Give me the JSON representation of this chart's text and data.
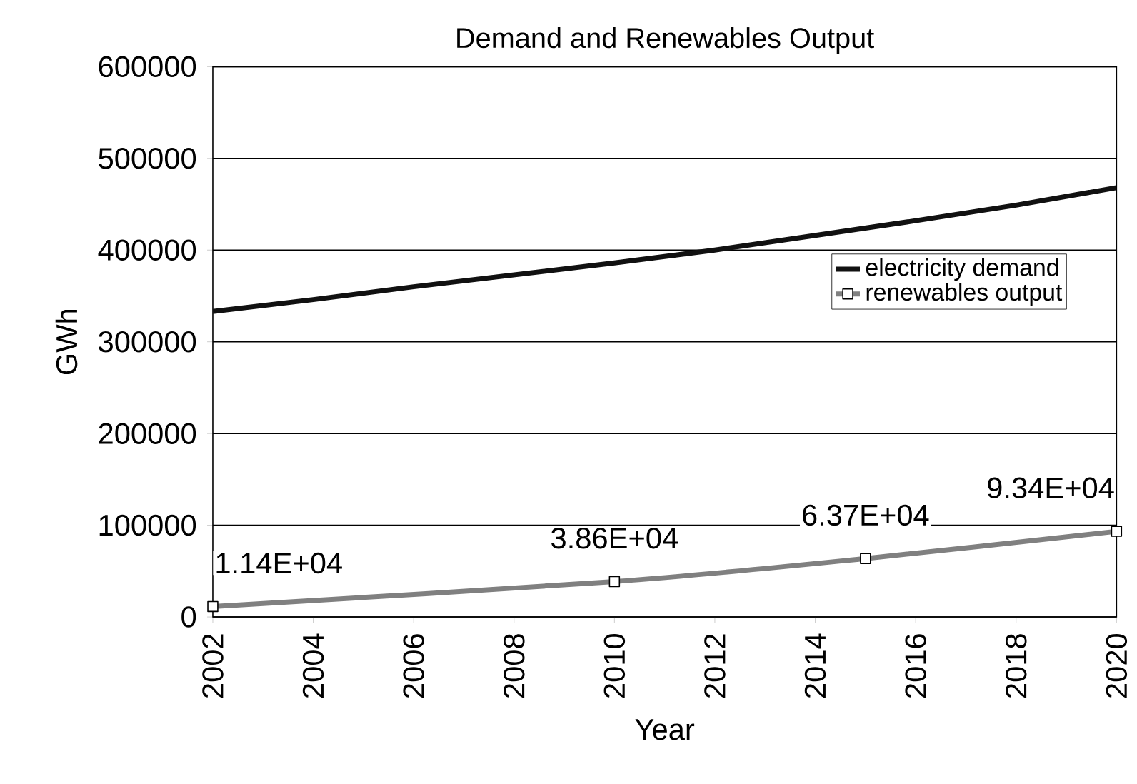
{
  "chart_data": {
    "type": "line",
    "title": "Demand and Renewables Output",
    "xlabel": "Year",
    "ylabel": "GWh",
    "xlim": [
      2002,
      2020
    ],
    "xticks": [
      2002,
      2004,
      2006,
      2008,
      2010,
      2012,
      2014,
      2016,
      2018,
      2020
    ],
    "ylim": [
      0,
      600000
    ],
    "yticks": [
      0,
      100000,
      200000,
      300000,
      400000,
      500000,
      600000
    ],
    "grid": "y",
    "legend": "right",
    "series": [
      {
        "name": "electricity demand",
        "color": "#111111",
        "marker": "none",
        "x": [
          2002,
          2004,
          2006,
          2008,
          2010,
          2012,
          2014,
          2016,
          2018,
          2020
        ],
        "values": [
          333000,
          346000,
          360000,
          373000,
          386000,
          400000,
          416000,
          432000,
          449000,
          468000
        ]
      },
      {
        "name": "renewables output",
        "color": "#808080",
        "marker": "square",
        "x": [
          2002,
          2010,
          2015,
          2020
        ],
        "values": [
          11400,
          38600,
          63700,
          93400
        ],
        "value_labels": [
          "1.14E+04",
          "3.86E+04",
          "6.37E+04",
          "9.34E+04"
        ]
      }
    ]
  }
}
